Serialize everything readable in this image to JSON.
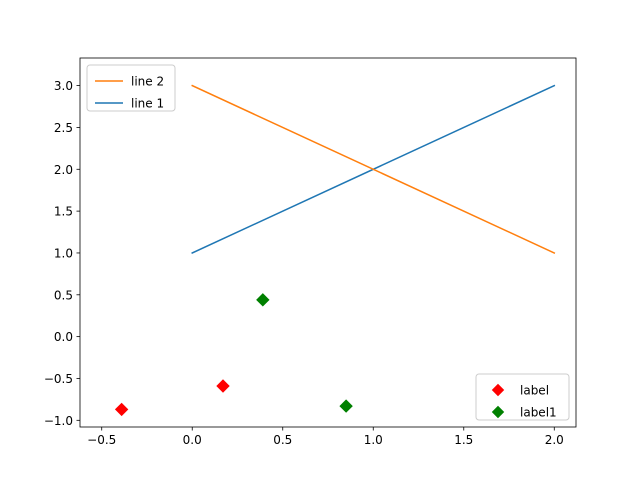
{
  "chart_data": {
    "type": "line",
    "title": "",
    "xlabel": "",
    "ylabel": "",
    "xlim": [
      -0.5,
      2.0
    ],
    "ylim": [
      -1.0,
      3.0
    ],
    "x_ticks": [
      -0.5,
      0.0,
      0.5,
      1.0,
      1.5,
      2.0
    ],
    "x_tick_labels": [
      "−0.5",
      "0.0",
      "0.5",
      "1.0",
      "1.5",
      "2.0"
    ],
    "y_ticks": [
      -1.0,
      -0.5,
      0.0,
      0.5,
      1.0,
      1.5,
      2.0,
      2.5,
      3.0
    ],
    "y_tick_labels": [
      "−1.0",
      "−0.5",
      "0.0",
      "0.5",
      "1.0",
      "1.5",
      "2.0",
      "2.5",
      "3.0"
    ],
    "grid": false,
    "series": [
      {
        "name": "line 1",
        "kind": "line",
        "color": "#1f77b4",
        "x": [
          0,
          2
        ],
        "y": [
          1,
          3
        ]
      },
      {
        "name": "line 2",
        "kind": "line",
        "color": "#ff7f0e",
        "x": [
          0,
          2
        ],
        "y": [
          3,
          1
        ]
      },
      {
        "name": "label",
        "kind": "scatter",
        "marker": "diamond",
        "color": "#ff0000",
        "x": [
          -0.39,
          0.17
        ],
        "y": [
          -0.87,
          -0.59
        ]
      },
      {
        "name": "label1",
        "kind": "scatter",
        "marker": "diamond",
        "color": "#008000",
        "x": [
          0.39,
          0.85
        ],
        "y": [
          0.44,
          -0.83
        ]
      }
    ],
    "legends": [
      {
        "placement": "upper-left",
        "entries": [
          "line 2",
          "line 1"
        ]
      },
      {
        "placement": "lower-right",
        "entries": [
          "label",
          "label1"
        ]
      }
    ]
  }
}
